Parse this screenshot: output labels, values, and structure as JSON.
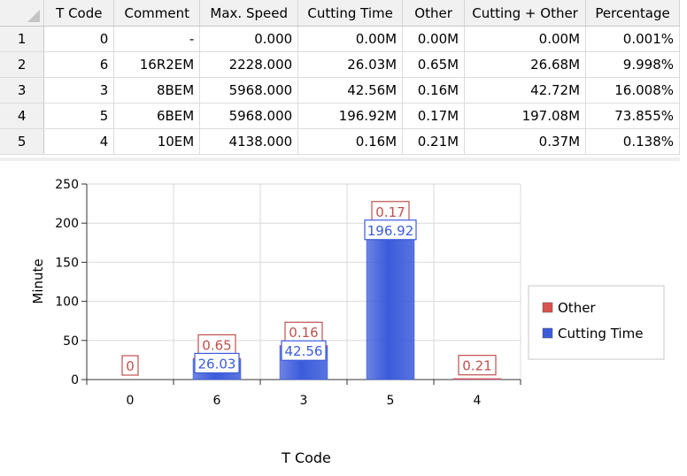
{
  "table": {
    "columns": [
      "T Code",
      "Comment",
      "Max. Speed",
      "Cutting Time",
      "Other",
      "Cutting + Other",
      "Percentage"
    ],
    "rows": [
      {
        "num": "1",
        "tcode": "0",
        "comment": "-",
        "max_speed": "0.000",
        "cutting_time": "0.00M",
        "other": "0.00M",
        "cutting_other": "0.00M",
        "percentage": "0.001%"
      },
      {
        "num": "2",
        "tcode": "6",
        "comment": "16R2EM",
        "max_speed": "2228.000",
        "cutting_time": "26.03M",
        "other": "0.65M",
        "cutting_other": "26.68M",
        "percentage": "9.998%"
      },
      {
        "num": "3",
        "tcode": "3",
        "comment": "8BEM",
        "max_speed": "5968.000",
        "cutting_time": "42.56M",
        "other": "0.16M",
        "cutting_other": "42.72M",
        "percentage": "16.008%"
      },
      {
        "num": "4",
        "tcode": "5",
        "comment": "6BEM",
        "max_speed": "5968.000",
        "cutting_time": "196.92M",
        "other": "0.17M",
        "cutting_other": "197.08M",
        "percentage": "73.855%"
      },
      {
        "num": "5",
        "tcode": "4",
        "comment": "10EM",
        "max_speed": "4138.000",
        "cutting_time": "0.16M",
        "other": "0.21M",
        "cutting_other": "0.37M",
        "percentage": "0.138%"
      }
    ]
  },
  "chart_data": {
    "type": "bar",
    "stacked": true,
    "categories": [
      "0",
      "6",
      "3",
      "5",
      "4"
    ],
    "series": [
      {
        "name": "Cutting Time",
        "values": [
          0.0,
          26.03,
          42.56,
          196.92,
          0.16
        ],
        "labels": [
          "",
          "26.03",
          "42.56",
          "196.92",
          ""
        ],
        "color": "#3b5bdb"
      },
      {
        "name": "Other",
        "values": [
          0.0,
          0.65,
          0.16,
          0.17,
          0.21
        ],
        "labels": [
          "0",
          "0.65",
          "0.16",
          "0.17",
          "0.21"
        ],
        "color": "#d9534f"
      }
    ],
    "legend_order": [
      "Other",
      "Cutting Time"
    ],
    "xlabel": "T Code",
    "ylabel": "Minute",
    "ylim": [
      0,
      250
    ],
    "yticks": [
      0,
      50,
      100,
      150,
      200,
      250
    ],
    "grid": true,
    "legend_position": "right"
  }
}
